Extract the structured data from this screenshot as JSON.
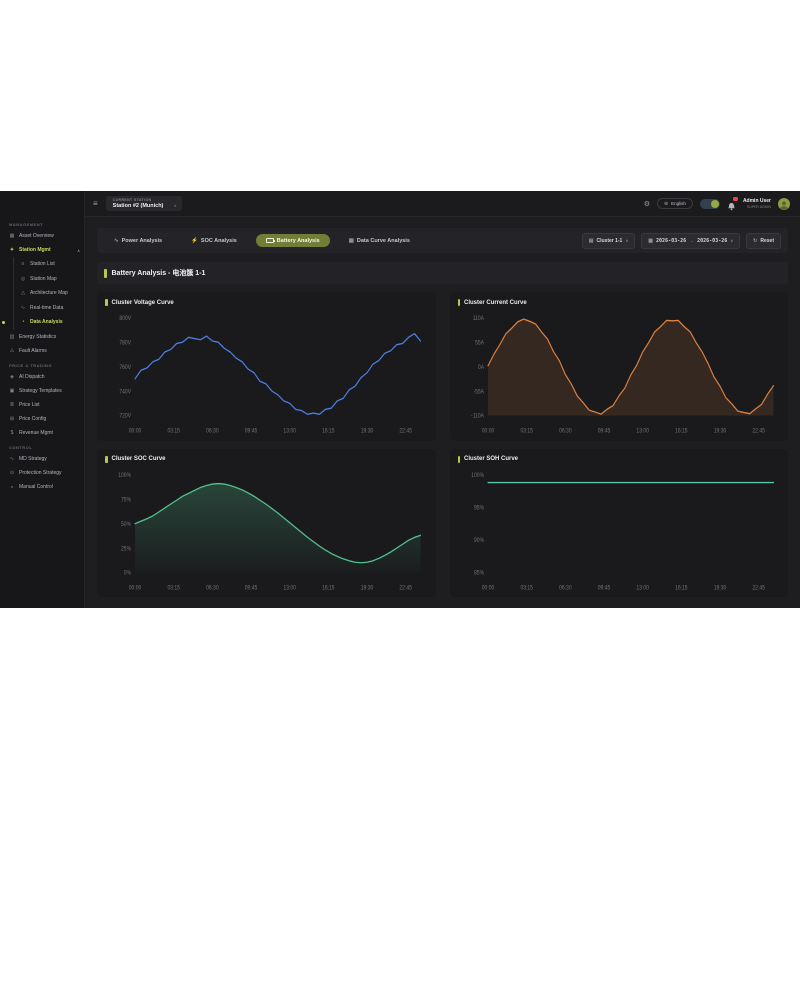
{
  "header": {
    "hamburger_icon": "≡",
    "station_label": "CURRENT STATION",
    "station_value": "Station #2 (Munich)",
    "language": "English",
    "user_name": "Admin User",
    "user_role": "SUPER ADMIN"
  },
  "sidebar": {
    "sections": [
      {
        "label": "MANAGEMENT",
        "items": [
          {
            "id": "asset-overview",
            "label": "Asset Overview",
            "glyph": "▦"
          },
          {
            "id": "station-mgmt",
            "label": "Station Mgmt",
            "glyph": "✦",
            "active": true,
            "expanded": true,
            "children": [
              {
                "id": "station-list",
                "label": "Station List",
                "glyph": "≡"
              },
              {
                "id": "station-map",
                "label": "Station Map",
                "glyph": "◎"
              },
              {
                "id": "architecture-map",
                "label": "Architecture Map",
                "glyph": "△"
              },
              {
                "id": "real-time-data",
                "label": "Real-time Data",
                "glyph": "∿"
              },
              {
                "id": "data-analysis",
                "label": "Data Analysis",
                "glyph": "◔",
                "active": true
              }
            ]
          },
          {
            "id": "energy-statistics",
            "label": "Energy Statistics",
            "glyph": "▥"
          },
          {
            "id": "fault-alarms",
            "label": "Fault Alarms",
            "glyph": "⚠"
          }
        ]
      },
      {
        "label": "PRICE & TRADING",
        "items": [
          {
            "id": "ai-dispatch",
            "label": "AI Dispatch",
            "glyph": "◈"
          },
          {
            "id": "strategy-templates",
            "label": "Strategy Templates",
            "glyph": "▣"
          },
          {
            "id": "price-list",
            "label": "Price List",
            "glyph": "≣"
          },
          {
            "id": "price-config",
            "label": "Price Config",
            "glyph": "⊞"
          },
          {
            "id": "revenue-mgmt",
            "label": "Revenue Mgmt",
            "glyph": "$"
          }
        ]
      },
      {
        "label": "CONTROL",
        "items": [
          {
            "id": "md-strategy",
            "label": "MD Strategy",
            "glyph": "∿"
          },
          {
            "id": "protection-strategy",
            "label": "Protection Strategy",
            "glyph": "⊙"
          },
          {
            "id": "manual-control",
            "label": "Manual Control",
            "glyph": "◒"
          }
        ]
      }
    ]
  },
  "toolbar": {
    "tabs": [
      {
        "id": "power-analysis",
        "label": "Power Analysis",
        "glyph": "∿"
      },
      {
        "id": "soc-analysis",
        "label": "SOC Analysis",
        "glyph": "⚡"
      },
      {
        "id": "battery-analysis",
        "label": "Battery Analysis",
        "glyph": "battery",
        "active": true
      },
      {
        "id": "data-curve-analysis",
        "label": "Data Curve Analysis",
        "glyph": "▦"
      }
    ],
    "cluster_select": "Cluster 1-1",
    "cluster_icon": "▤",
    "calendar_icon": "▦",
    "date_from": "2026-03-26",
    "date_arrow": "→",
    "date_to": "2026-03-26",
    "reset_icon": "↻",
    "reset_label": "Reset"
  },
  "page": {
    "title": "Battery Analysis - 电池簇 1-1"
  },
  "colors": {
    "accent": "#b5c94f",
    "active_pill_bg": "#717e35",
    "voltage_line": "#4b7ee1",
    "current_line": "#dd8140",
    "soc_line": "#52c18c",
    "soh_line": "#5cc3ac",
    "badge_red": "#e5484d"
  },
  "chart_data": [
    {
      "id": "voltage",
      "type": "line",
      "title": "Cluster Voltage Curve",
      "color": "#4b7ee1",
      "fill": "none",
      "y_ticks": [
        "800V",
        "780V",
        "760V",
        "740V",
        "720V"
      ],
      "y_min": 720,
      "y_max": 800,
      "x_step_hours": 0.5,
      "x_labels": [
        "00:00",
        "03:15",
        "06:30",
        "09:45",
        "13:00",
        "16:15",
        "19:30",
        "22:45"
      ],
      "values": [
        750,
        757,
        759,
        764,
        766,
        772,
        774,
        779,
        780,
        784,
        783,
        782,
        785,
        781,
        780,
        775,
        772,
        767,
        764,
        758,
        755,
        748,
        746,
        740,
        737,
        732,
        730,
        725,
        724,
        721,
        722,
        721,
        725,
        726,
        732,
        734,
        741,
        744,
        751,
        755,
        762,
        765,
        771,
        773,
        778,
        779,
        784,
        787,
        781
      ]
    },
    {
      "id": "current",
      "type": "line",
      "title": "Cluster Current Curve",
      "color": "#dd8140",
      "fill": "solid",
      "fill_color": "rgba(221,129,64,0.14)",
      "y_ticks": [
        "110A",
        "55A",
        "0A",
        "-55A",
        "-110A"
      ],
      "y_min": -110,
      "y_max": 110,
      "x_step_hours": 0.5,
      "x_labels": [
        "00:00",
        "03:15",
        "06:30",
        "09:45",
        "13:00",
        "16:15",
        "19:30",
        "22:45"
      ],
      "values": [
        2,
        28,
        50,
        74,
        87,
        101,
        107,
        102,
        96,
        78,
        62,
        34,
        13,
        -18,
        -39,
        -66,
        -81,
        -98,
        -102,
        -107,
        -96,
        -88,
        -66,
        -48,
        -19,
        3,
        33,
        54,
        78,
        90,
        104,
        103,
        104,
        90,
        78,
        54,
        33,
        7,
        -23,
        -44,
        -70,
        -84,
        -100,
        -103,
        -106,
        -95,
        -85,
        -62,
        -43
      ]
    },
    {
      "id": "soc",
      "type": "line",
      "title": "Cluster SOC Curve",
      "color": "#52c18c",
      "fill": "gradient",
      "fill_opacity": 0.26,
      "y_ticks": [
        "100%",
        "75%",
        "50%",
        "25%",
        "0%"
      ],
      "y_min": 0,
      "y_max": 100,
      "x_step_hours": 0.5,
      "x_labels": [
        "00:00",
        "03:15",
        "06:30",
        "09:45",
        "13:00",
        "16:15",
        "19:30",
        "22:45"
      ],
      "values": [
        50,
        52.5,
        55,
        58,
        62,
        66,
        70,
        74,
        78,
        81,
        84,
        87,
        89,
        90.5,
        91,
        90.5,
        89,
        87,
        84.5,
        81.5,
        78,
        74,
        70,
        65.5,
        61,
        56,
        51,
        46,
        41,
        36,
        31.5,
        27,
        23,
        19.5,
        16.5,
        14,
        12,
        10.5,
        10,
        10.5,
        12,
        14.5,
        17.5,
        21,
        25,
        29,
        33,
        36,
        38
      ]
    },
    {
      "id": "soh",
      "type": "line",
      "title": "Cluster SOH Curve",
      "color": "#5cc3ac",
      "fill": "none",
      "y_ticks": [
        "100%",
        "95%",
        "90%",
        "85%"
      ],
      "y_min": 85,
      "y_max": 100,
      "constant": 98.8,
      "x_labels": [
        "00:00",
        "03:15",
        "06:30",
        "09:45",
        "13:00",
        "16:15",
        "19:30",
        "22:45"
      ]
    }
  ]
}
